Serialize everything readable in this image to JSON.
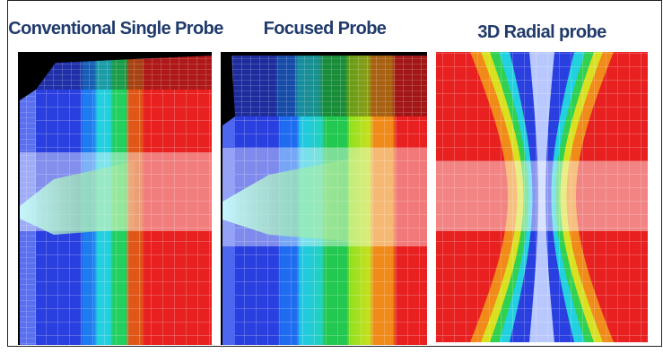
{
  "panels": [
    {
      "title": "Conventional Single Probe"
    },
    {
      "title": "Focused Probe"
    },
    {
      "title": "3D Radial probe"
    }
  ]
}
